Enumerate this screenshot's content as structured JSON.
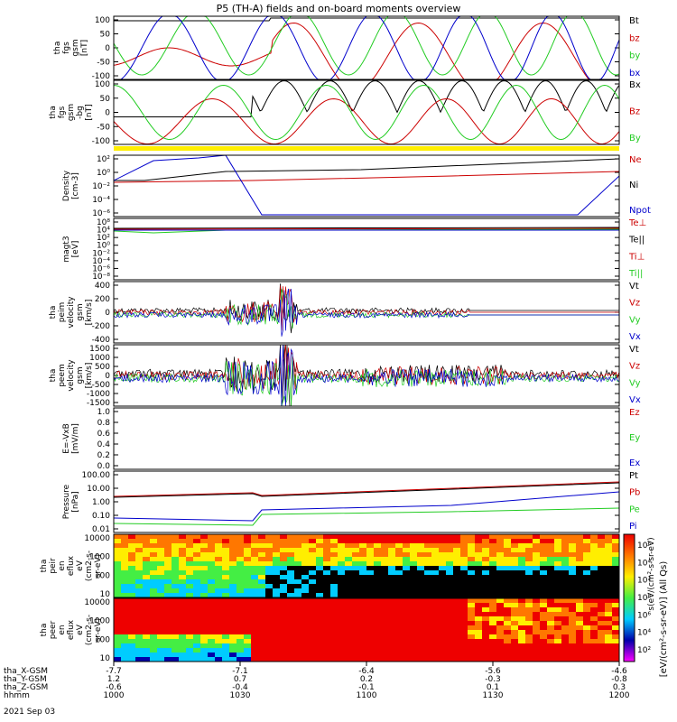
{
  "title": "P5 (TH-A) fields and on-board moments overview",
  "colors": {
    "black": "#000000",
    "red": "#cc0000",
    "green": "#22cc22",
    "blue": "#0000cc",
    "yellow": "#ffee00"
  },
  "chart_data": [
    {
      "id": "fgs_gsm",
      "type": "line",
      "ylabel": [
        "tha",
        "fgs",
        "gsm",
        "[nT]"
      ],
      "yticks": [
        "100",
        "50",
        "0",
        "-50",
        "-100"
      ],
      "ylim": [
        -110,
        110
      ],
      "series": [
        {
          "name": "Bt",
          "color": "black"
        },
        {
          "name": "bz",
          "color": "red"
        },
        {
          "name": "by",
          "color": "green"
        },
        {
          "name": "bx",
          "color": "blue"
        }
      ]
    },
    {
      "id": "fgs_gsm_0",
      "type": "line",
      "ylabel": [
        "tha",
        "fgs",
        "gsm",
        "-bg",
        "[nT]"
      ],
      "yticks": [
        "100",
        "50",
        "0",
        "-50",
        "-100"
      ],
      "ylim": [
        -110,
        110
      ],
      "series": [
        {
          "name": "Bx",
          "color": "black"
        },
        {
          "name": "Bz",
          "color": "red"
        },
        {
          "name": "By",
          "color": "green"
        }
      ]
    },
    {
      "id": "density",
      "type": "line",
      "ylabel": [
        "Density",
        "[cm-3]"
      ],
      "scale": "log",
      "yticks": [
        "10²",
        "10⁰",
        "10⁻²",
        "10⁻⁴",
        "10⁻⁶"
      ],
      "series": [
        {
          "name": "Ne",
          "color": "red"
        },
        {
          "name": "Ni",
          "color": "black"
        },
        {
          "name": "Npot",
          "color": "blue"
        }
      ]
    },
    {
      "id": "temp",
      "type": "line",
      "ylabel": [
        "magt3",
        "[eV]"
      ],
      "scale": "log",
      "yticks": [
        "10⁸",
        "10⁴",
        "10²",
        "10⁰",
        "10⁻²",
        "10⁻⁴",
        "10⁻⁶",
        "10⁻⁸"
      ],
      "series": [
        {
          "name": "Te⊥",
          "color": "red"
        },
        {
          "name": "Te||",
          "color": "black"
        },
        {
          "name": "Ti⊥",
          "color": "red"
        },
        {
          "name": "Ti||",
          "color": "green"
        }
      ]
    },
    {
      "id": "peim",
      "type": "line",
      "ylabel": [
        "tha",
        "peim",
        "velocity",
        "gsm",
        "[km/s]"
      ],
      "yticks": [
        "400",
        "200",
        "0",
        "-200",
        "-400"
      ],
      "ylim": [
        -400,
        420
      ],
      "series": [
        {
          "name": "Vt",
          "color": "black"
        },
        {
          "name": "Vz",
          "color": "red"
        },
        {
          "name": "Vy",
          "color": "green"
        },
        {
          "name": "Vx",
          "color": "blue"
        }
      ]
    },
    {
      "id": "peem",
      "type": "line",
      "ylabel": [
        "tha",
        "peem",
        "velocity",
        "gsm",
        "[km/s]"
      ],
      "yticks": [
        "1500",
        "1000",
        "500",
        "0",
        "-500",
        "-1000",
        "-1500"
      ],
      "ylim": [
        -1550,
        1550
      ],
      "series": [
        {
          "name": "Vt",
          "color": "black"
        },
        {
          "name": "Vz",
          "color": "red"
        },
        {
          "name": "Vy",
          "color": "green"
        },
        {
          "name": "Vx",
          "color": "blue"
        }
      ]
    },
    {
      "id": "efield",
      "type": "line",
      "ylabel": [
        "E=-VxB",
        "[mV/m]"
      ],
      "yticks": [
        "1.0",
        "0.8",
        "0.6",
        "0.4",
        "0.2",
        "0.0"
      ],
      "ylim": [
        0,
        1
      ],
      "series": [
        {
          "name": "Ez",
          "color": "red"
        },
        {
          "name": "Ey",
          "color": "green"
        },
        {
          "name": "Ex",
          "color": "blue"
        }
      ]
    },
    {
      "id": "pressure",
      "type": "line",
      "ylabel": [
        "Pressure",
        "[nPa]"
      ],
      "scale": "log",
      "yticks": [
        "100.00",
        "10.00",
        "1.00",
        "0.10",
        "0.01"
      ],
      "series": [
        {
          "name": "Pt",
          "color": "black"
        },
        {
          "name": "Pb",
          "color": "red"
        },
        {
          "name": "Pe",
          "color": "green"
        },
        {
          "name": "Pi",
          "color": "blue"
        }
      ]
    },
    {
      "id": "peir_spec",
      "type": "heatmap",
      "ylabel": [
        "tha",
        "peir",
        "en",
        "eflux",
        "eV",
        "(cm2-s-",
        "sr-eV)"
      ],
      "yticks": [
        "10000",
        "1000",
        "100",
        "10"
      ]
    },
    {
      "id": "peer_spec",
      "type": "heatmap",
      "ylabel": [
        "tha",
        "peer",
        "en",
        "eflux",
        "eV",
        "(cm2-s-",
        "sr-eV)"
      ],
      "yticks": [
        "10000",
        "1000",
        "100",
        "10"
      ]
    }
  ],
  "colorbar": {
    "ticks": [
      "10⁶",
      "10⁴",
      "10²",
      "10⁸",
      "10⁶",
      "10⁴",
      "10²"
    ],
    "label": "[eV/(cm²-s-sr-eV)] (All Qs)",
    "label2": "s(eV/(cm²-s-sr-eV)"
  },
  "xaxis": {
    "rows": [
      {
        "label": "tha_X-GSM",
        "values": [
          "-7.7",
          "-7.1",
          "-6.4",
          "-5.6",
          "-4.6"
        ]
      },
      {
        "label": "tha_Y-GSM",
        "values": [
          "1.2",
          "0.7",
          "0.2",
          "-0.3",
          "-0.8"
        ]
      },
      {
        "label": "tha_Z-GSM",
        "values": [
          "-0.6",
          "-0.4",
          "-0.1",
          "0.1",
          "0.3"
        ]
      },
      {
        "label": "hhmm",
        "values": [
          "1000",
          "1030",
          "1100",
          "1130",
          "1200"
        ]
      }
    ],
    "date": "2021 Sep 03"
  }
}
